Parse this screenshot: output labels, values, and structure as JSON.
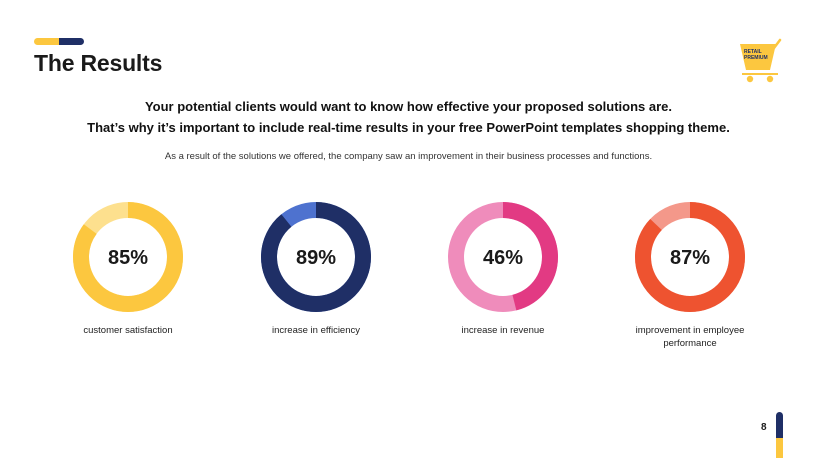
{
  "colors": {
    "navy": "#1f2f66",
    "yellow": "#fcc73f",
    "yellow_light": "#fde08e",
    "blue_light": "#4e72cf",
    "pink": "#e23a83",
    "pink_light": "#ef8cbb",
    "orange": "#ee5330",
    "orange_light": "#f4988a"
  },
  "title": "The Results",
  "logo": {
    "line1": "RETAIL",
    "line2": "PREMIUM",
    "icon": "shopping-cart-icon"
  },
  "headline": {
    "line1": "Your potential clients would want to know how effective your proposed solutions are.",
    "line2": "That’s why it’s important to include real-time results in your free PowerPoint templates shopping theme."
  },
  "subtext": "As a result of the solutions we offered, the company saw an improvement in their business processes and functions.",
  "stats": [
    {
      "value": "85%",
      "percent": 85,
      "label": "customer satisfaction",
      "color": "#fcc73f",
      "track": "#fde08e"
    },
    {
      "value": "89%",
      "percent": 89,
      "label": "increase in efficiency",
      "color": "#1f2f66",
      "track": "#4e72cf"
    },
    {
      "value": "46%",
      "percent": 46,
      "label": "increase in revenue",
      "color": "#e23a83",
      "track": "#ef8cbb"
    },
    {
      "value": "87%",
      "percent": 87,
      "label": "improvement in employee performance",
      "color": "#ee5330",
      "track": "#f4988a"
    }
  ],
  "page_number": "8"
}
